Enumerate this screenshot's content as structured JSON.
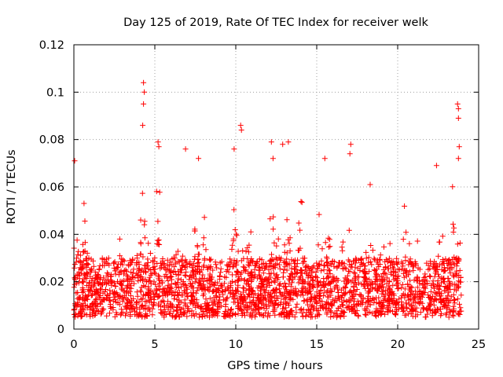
{
  "chart_data": {
    "type": "scatter",
    "title": "Day 125 of 2019, Rate Of TEC Index for receiver welk",
    "xlabel": "GPS time / hours",
    "ylabel": "ROTI / TECUs",
    "xlim": [
      0,
      25
    ],
    "ylim": [
      0,
      0.12
    ],
    "xticks": [
      0,
      5,
      10,
      15,
      20,
      25
    ],
    "xtick_labels": [
      "0",
      "5",
      "10",
      "15",
      "20",
      "25"
    ],
    "yticks": [
      0,
      0.02,
      0.04,
      0.06,
      0.08,
      0.1,
      0.12
    ],
    "ytick_labels": [
      "0",
      "0.02",
      "0.04",
      "0.06",
      "0.08",
      "0.1",
      "0.12"
    ],
    "grid": true,
    "marker": "+",
    "color": "#ff0000",
    "series": [
      {
        "name": "ROTI",
        "point_count": 2600,
        "time_range_hours": [
          0,
          24
        ],
        "typical_range": [
          0.005,
          0.03
        ],
        "notable_peaks": [
          {
            "x": 0.05,
            "y": 0.071
          },
          {
            "x": 4.3,
            "y": 0.104
          },
          {
            "x": 4.35,
            "y": 0.1
          },
          {
            "x": 4.3,
            "y": 0.095
          },
          {
            "x": 4.25,
            "y": 0.086
          },
          {
            "x": 5.2,
            "y": 0.079
          },
          {
            "x": 5.25,
            "y": 0.077
          },
          {
            "x": 6.9,
            "y": 0.076
          },
          {
            "x": 7.7,
            "y": 0.072
          },
          {
            "x": 9.9,
            "y": 0.076
          },
          {
            "x": 10.3,
            "y": 0.086
          },
          {
            "x": 10.35,
            "y": 0.084
          },
          {
            "x": 12.2,
            "y": 0.079
          },
          {
            "x": 12.3,
            "y": 0.072
          },
          {
            "x": 12.9,
            "y": 0.078
          },
          {
            "x": 13.25,
            "y": 0.079
          },
          {
            "x": 15.5,
            "y": 0.072
          },
          {
            "x": 17.1,
            "y": 0.078
          },
          {
            "x": 17.05,
            "y": 0.074
          },
          {
            "x": 18.3,
            "y": 0.061
          },
          {
            "x": 22.4,
            "y": 0.069
          },
          {
            "x": 23.7,
            "y": 0.095
          },
          {
            "x": 23.75,
            "y": 0.093
          },
          {
            "x": 23.75,
            "y": 0.089
          },
          {
            "x": 23.8,
            "y": 0.077
          },
          {
            "x": 23.75,
            "y": 0.072
          }
        ]
      }
    ]
  }
}
